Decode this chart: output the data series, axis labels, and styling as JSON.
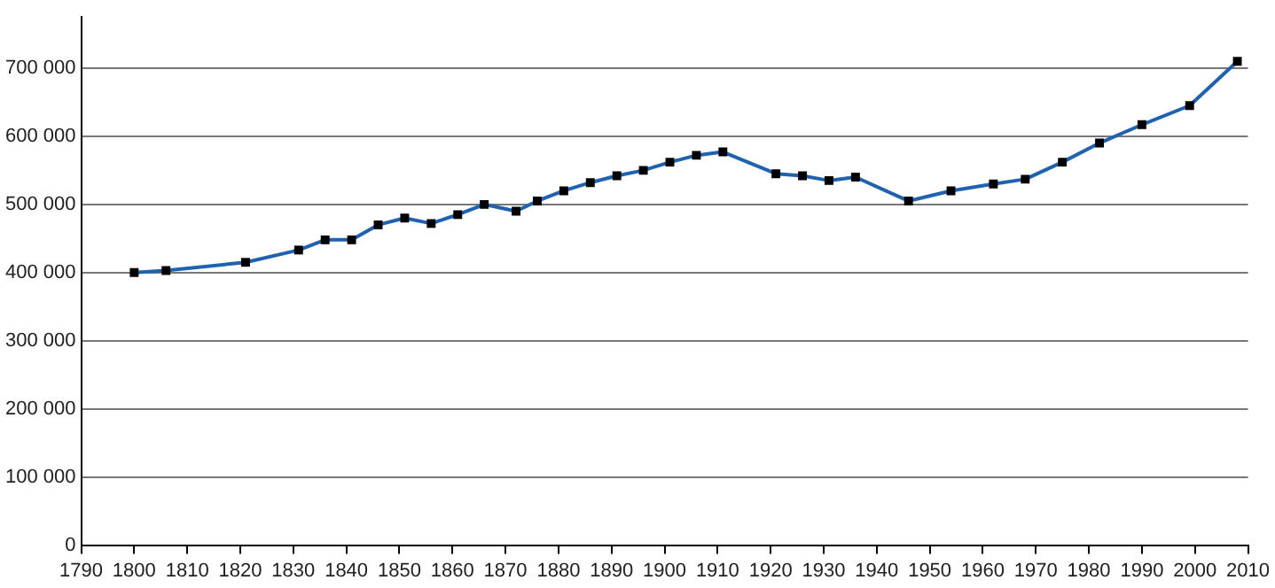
{
  "chart_data": {
    "type": "line",
    "x": [
      1800,
      1806,
      1821,
      1831,
      1836,
      1841,
      1846,
      1851,
      1856,
      1861,
      1866,
      1872,
      1876,
      1881,
      1886,
      1891,
      1896,
      1901,
      1906,
      1911,
      1921,
      1926,
      1931,
      1936,
      1946,
      1954,
      1962,
      1968,
      1975,
      1982,
      1990,
      1999,
      2008
    ],
    "series": [
      {
        "color": "#1f63b0",
        "values": [
          400000,
          403000,
          415000,
          433000,
          448000,
          448000,
          470000,
          480000,
          472000,
          485000,
          500000,
          490000,
          505000,
          520000,
          532000,
          542000,
          550000,
          562000,
          572000,
          577000,
          545000,
          542000,
          535000,
          540000,
          505000,
          520000,
          530000,
          537000,
          562000,
          590000,
          617000,
          645000,
          710000
        ]
      }
    ],
    "xlim": [
      1790,
      2010
    ],
    "xticks": [
      1790,
      1800,
      1810,
      1820,
      1830,
      1840,
      1850,
      1860,
      1870,
      1880,
      1890,
      1900,
      1910,
      1920,
      1930,
      1940,
      1950,
      1960,
      1970,
      1980,
      1990,
      2000,
      2010
    ],
    "ylim": [
      0,
      775000
    ],
    "yticks": [
      {
        "value": 0,
        "label": "0"
      },
      {
        "value": 100000,
        "label": "100 000"
      },
      {
        "value": 200000,
        "label": "200 000"
      },
      {
        "value": 300000,
        "label": "300 000"
      },
      {
        "value": 400000,
        "label": "400 000"
      },
      {
        "value": 500000,
        "label": "500 000"
      },
      {
        "value": 600000,
        "label": "600 000"
      },
      {
        "value": 700000,
        "label": "700 000"
      }
    ],
    "grid": "y",
    "marker": "square",
    "line_style": "solid",
    "legend": false
  }
}
